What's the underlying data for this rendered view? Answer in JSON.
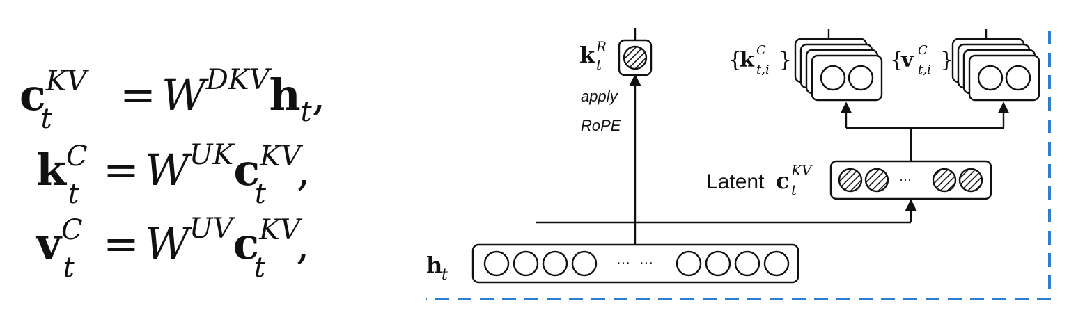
{
  "equations": [
    {
      "lhs": "c",
      "lhs_sup": "KV",
      "lhs_sub": "t",
      "eq": "=",
      "w": "W",
      "w_sup": "DKV",
      "rhs": "h",
      "rhs_sub": "t",
      "rhs_sup": "",
      "end": ","
    },
    {
      "lhs": "k",
      "lhs_sup": "C",
      "lhs_sub": "t",
      "eq": "=",
      "w": "W",
      "w_sup": "UK",
      "rhs": "c",
      "rhs_sub": "t",
      "rhs_sup": "KV",
      "end": ","
    },
    {
      "lhs": "v",
      "lhs_sup": "C",
      "lhs_sub": "t",
      "eq": "=",
      "w": "W",
      "w_sup": "UV",
      "rhs": "c",
      "rhs_sub": "t",
      "rhs_sup": "KV",
      "end": ","
    }
  ],
  "diagram": {
    "kR": {
      "sym": "k",
      "sup": "R",
      "sub": "t"
    },
    "apply_line1": "apply",
    "apply_line2": "RoPE",
    "kC": {
      "open": "{",
      "sym": "k",
      "sup": "C",
      "sub": "t,i",
      "close": "}"
    },
    "vC": {
      "open": "{",
      "sym": "v",
      "sup": "C",
      "sub": "t,i",
      "close": "}"
    },
    "latent": {
      "word": "Latent",
      "sym": "c",
      "sup": "KV",
      "sub": "t"
    },
    "latent_dots": "···",
    "input": {
      "sym": "h",
      "sub": "t"
    },
    "input_dots_1": "···",
    "input_dots_2": "···"
  },
  "colors": {
    "border_dashed": "#2a7fd0",
    "ink": "#111111"
  }
}
